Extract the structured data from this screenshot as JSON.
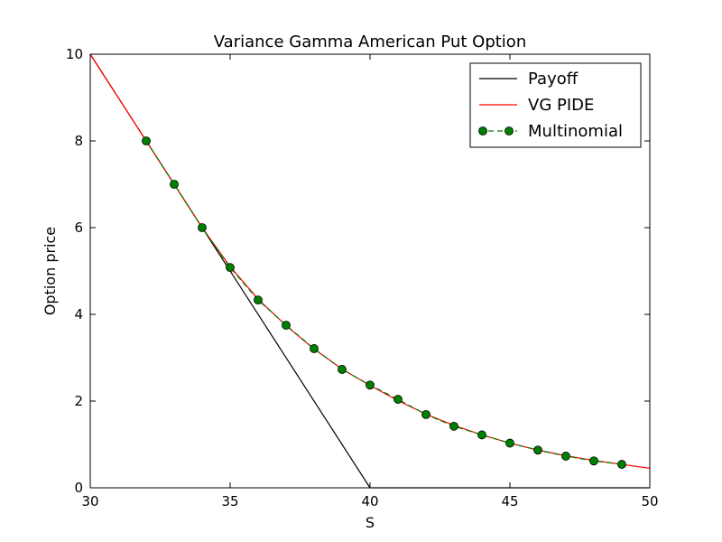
{
  "chart_data": {
    "type": "line",
    "title": "Variance Gamma American Put Option",
    "xlabel": "S",
    "ylabel": "Option price",
    "xlim": [
      30,
      50
    ],
    "ylim": [
      0,
      10
    ],
    "xticks": [
      "30",
      "35",
      "40",
      "45",
      "50"
    ],
    "yticks": [
      "0",
      "2",
      "4",
      "6",
      "8",
      "10"
    ],
    "grid": false,
    "legend_position": "top-right",
    "series": [
      {
        "name": "Payoff",
        "color": "#000000",
        "style": "solid",
        "x": [
          30,
          40,
          50
        ],
        "y": [
          10,
          0,
          0
        ]
      },
      {
        "name": "VG PIDE",
        "color": "#ff0000",
        "style": "solid",
        "x": [
          30,
          31,
          32,
          33,
          34,
          35,
          36,
          37,
          38,
          39,
          40,
          41,
          42,
          43,
          44,
          45,
          46,
          47,
          48,
          49,
          50
        ],
        "y": [
          10,
          9,
          8,
          7,
          6,
          5.1,
          4.35,
          3.74,
          3.2,
          2.74,
          2.36,
          2.01,
          1.7,
          1.44,
          1.22,
          1.03,
          0.87,
          0.74,
          0.63,
          0.54,
          0.45
        ]
      },
      {
        "name": "Multinomial",
        "color": "#008000",
        "style": "dashed-marker",
        "x": [
          32,
          33,
          34,
          35,
          36,
          37,
          38,
          39,
          40,
          41,
          42,
          43,
          44,
          45,
          46,
          47,
          48,
          49
        ],
        "y": [
          8,
          7,
          6,
          5.08,
          4.33,
          3.75,
          3.21,
          2.73,
          2.37,
          2.04,
          1.69,
          1.42,
          1.22,
          1.03,
          0.87,
          0.73,
          0.62,
          0.54
        ]
      }
    ]
  }
}
